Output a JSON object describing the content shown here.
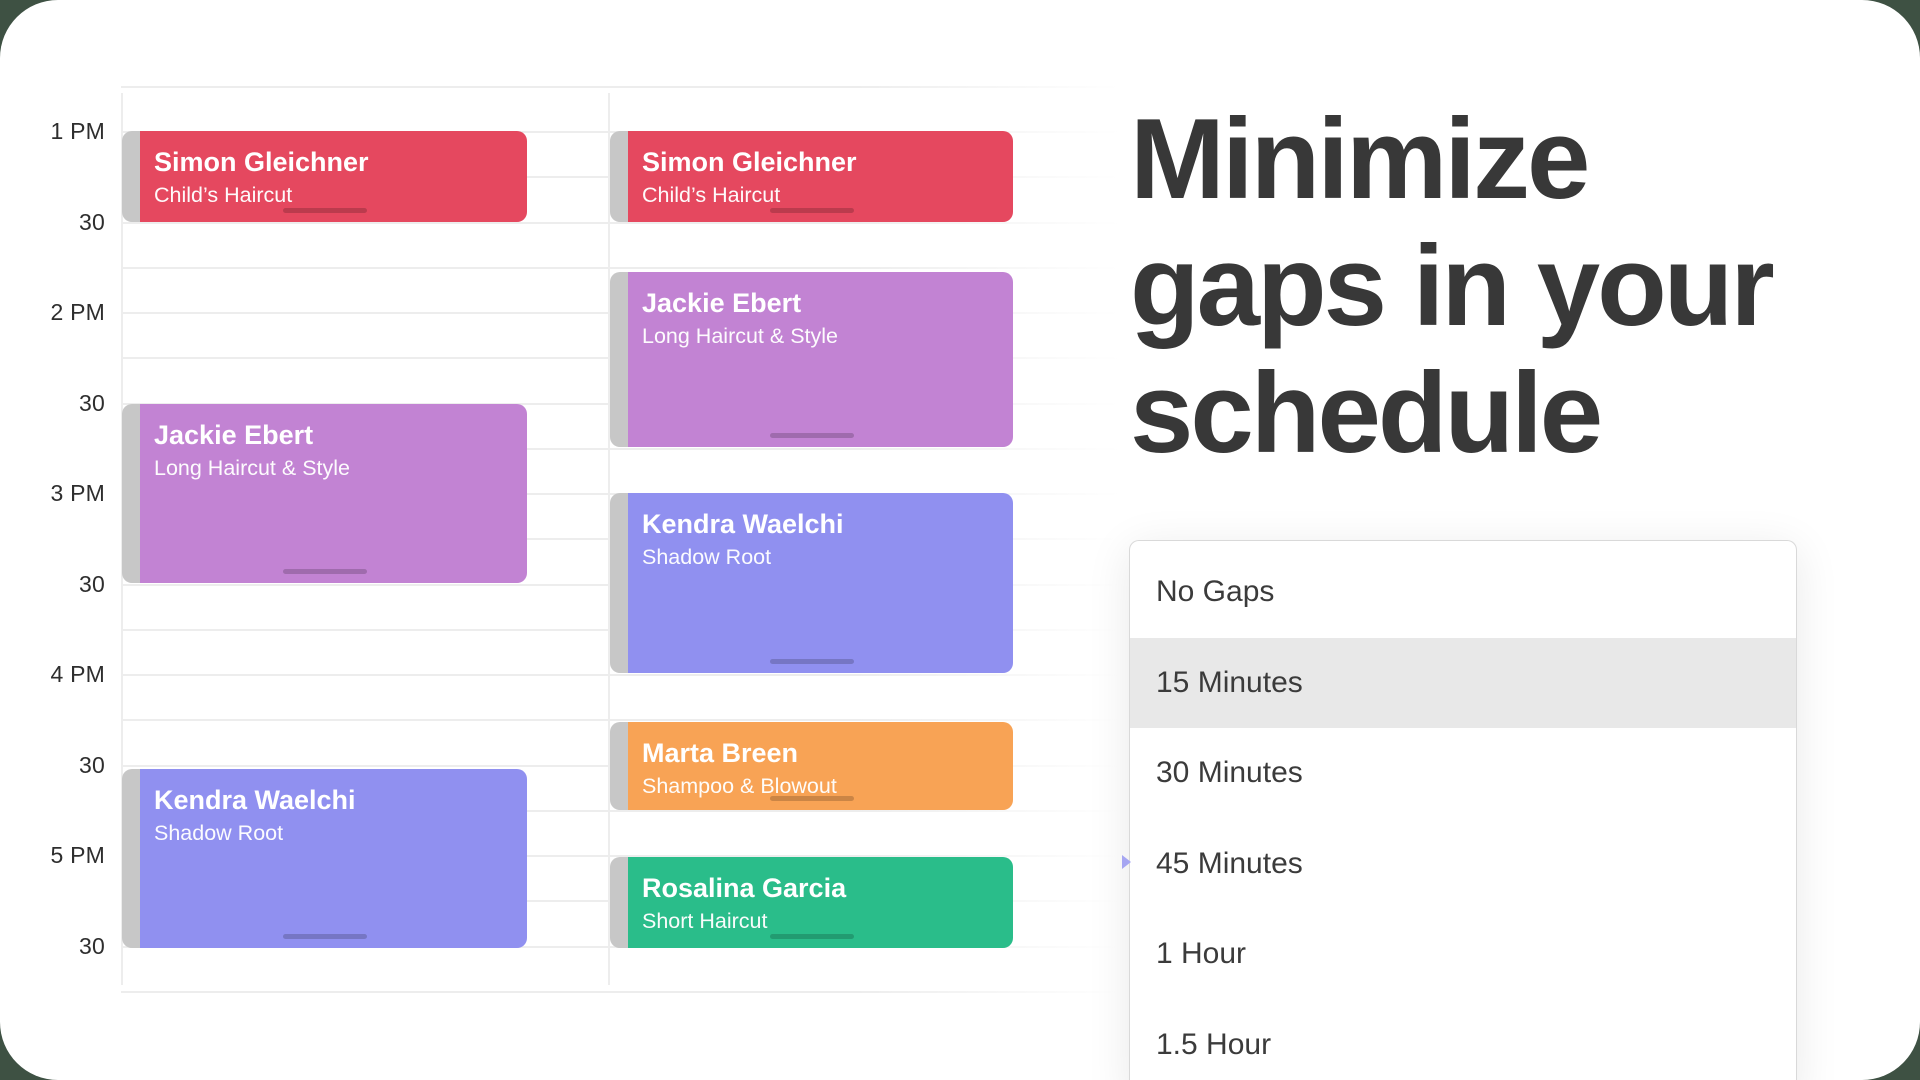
{
  "background_color": "#3e5143",
  "headline": {
    "line1": "Minimize",
    "line2": "gaps in your",
    "line3": "schedule",
    "color": "#383838"
  },
  "calendar": {
    "time_labels": [
      "1 PM",
      "30",
      "2 PM",
      "30",
      "3 PM",
      "30",
      "4 PM",
      "30",
      "5 PM",
      "30"
    ],
    "columns": [
      {
        "events": [
          {
            "client": "Simon Gleichner",
            "service": "Child’s Haircut",
            "color_key": "red"
          },
          {
            "client": "Jackie Ebert",
            "service": "Long Haircut & Style",
            "color_key": "purple"
          },
          {
            "client": "Kendra Waelchi",
            "service": "Shadow Root",
            "color_key": "blue"
          }
        ]
      },
      {
        "events": [
          {
            "client": "Simon Gleichner",
            "service": "Child’s Haircut",
            "color_key": "red"
          },
          {
            "client": "Jackie Ebert",
            "service": "Long Haircut & Style",
            "color_key": "purple"
          },
          {
            "client": "Kendra Waelchi",
            "service": "Shadow Root",
            "color_key": "blue"
          },
          {
            "client": "Marta Breen",
            "service": "Shampoo & Blowout",
            "color_key": "orange"
          },
          {
            "client": "Rosalina Garcia",
            "service": "Short Haircut",
            "color_key": "green"
          }
        ]
      }
    ]
  },
  "dropdown": {
    "items": [
      {
        "label": "No Gaps",
        "selected": false
      },
      {
        "label": "15 Minutes",
        "selected": true
      },
      {
        "label": "30 Minutes",
        "selected": false
      },
      {
        "label": "45 Minutes",
        "selected": false
      },
      {
        "label": "1 Hour",
        "selected": false
      },
      {
        "label": "1.5 Hour",
        "selected": false
      }
    ]
  },
  "colors": {
    "red": "#e5485f",
    "purple": "#c283d3",
    "blue": "#9090f0",
    "orange": "#f8a355",
    "green": "#2abd8a",
    "highlight": "#e8e8e8",
    "grid_line": "#ededed",
    "handle": "#c7c7c7",
    "cursor_arrow": "#a6a6f2",
    "headline_text": "#383838"
  }
}
